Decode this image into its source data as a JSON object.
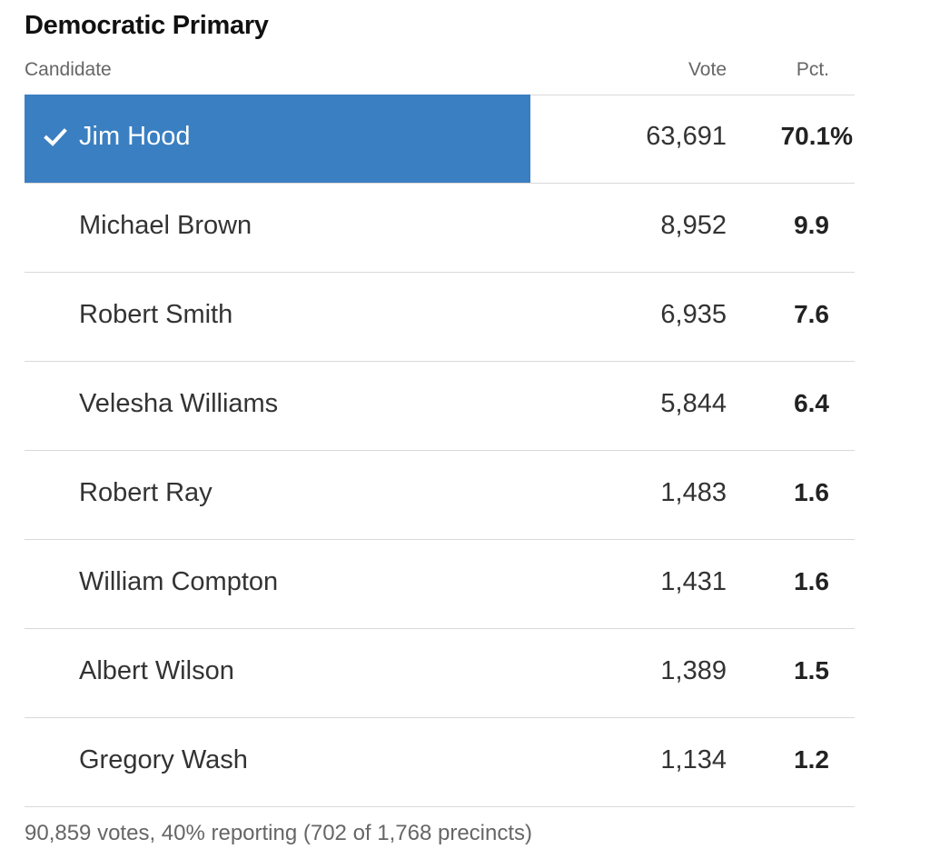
{
  "title": "Democratic Primary",
  "columns": {
    "candidate": "Candidate",
    "vote": "Vote",
    "pct": "Pct."
  },
  "colors": {
    "winner_bar": "#3a7fc1",
    "winner_text": "#ffffff"
  },
  "candidates": [
    {
      "name": "Jim Hood",
      "vote": "63,691",
      "pct": "70.1%",
      "winner": true,
      "icon": "check-icon",
      "share": 0.701
    },
    {
      "name": "Michael Brown",
      "vote": "8,952",
      "pct": "9.9"
    },
    {
      "name": "Robert Smith",
      "vote": "6,935",
      "pct": "7.6"
    },
    {
      "name": "Velesha Williams",
      "vote": "5,844",
      "pct": "6.4"
    },
    {
      "name": "Robert Ray",
      "vote": "1,483",
      "pct": "1.6"
    },
    {
      "name": "William Compton",
      "vote": "1,431",
      "pct": "1.6"
    },
    {
      "name": "Albert Wilson",
      "vote": "1,389",
      "pct": "1.5"
    },
    {
      "name": "Gregory Wash",
      "vote": "1,134",
      "pct": "1.2"
    }
  ],
  "footer": "90,859 votes, 40% reporting (702 of 1,768 precincts)"
}
